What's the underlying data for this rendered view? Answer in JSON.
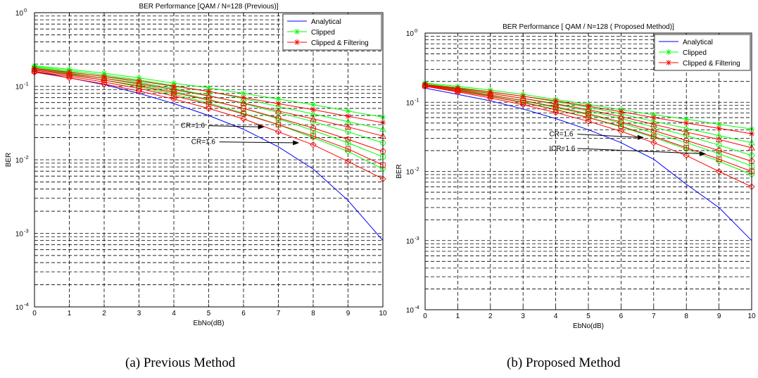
{
  "chart_data": [
    {
      "type": "line",
      "y_scale": "log",
      "title": "BER Performance [QAM / N=128 (Previous)]",
      "xlabel": "EbNo(dB)",
      "ylabel": "BER",
      "xlim": [
        0,
        10
      ],
      "ylim": [
        0.0001,
        1
      ],
      "x_ticks": [
        "0",
        "1",
        "2",
        "3",
        "4",
        "5",
        "6",
        "7",
        "8",
        "9",
        "10"
      ],
      "y_ticks": [
        {
          "base": "10",
          "exp": "0",
          "value": 1
        },
        {
          "base": "10",
          "exp": "-1",
          "value": 0.1
        },
        {
          "base": "10",
          "exp": "-2",
          "value": 0.01
        },
        {
          "base": "10",
          "exp": "-3",
          "value": 0.001
        },
        {
          "base": "10",
          "exp": "-4",
          "value": 0.0001
        }
      ],
      "grid": true,
      "legend_position": "top-right",
      "caption": "(a) Previous Method",
      "x": [
        0,
        1,
        2,
        3,
        4,
        5,
        6,
        7,
        8,
        9,
        10
      ],
      "series": [
        {
          "name": "Analytical",
          "color": "#0000ff",
          "marker": "none",
          "values": [
            0.16,
            0.13,
            0.105,
            0.08,
            0.058,
            0.04,
            0.026,
            0.015,
            0.0075,
            0.0028,
            0.0008
          ]
        },
        {
          "name": "Clipped",
          "color": "#00ff00",
          "marker": "star",
          "values": [
            0.19,
            0.17,
            0.15,
            0.13,
            0.11,
            0.095,
            0.08,
            0.067,
            0.056,
            0.046,
            0.038
          ]
        },
        {
          "color": "#00ff00",
          "marker": "triangle",
          "values": [
            0.185,
            0.163,
            0.142,
            0.122,
            0.102,
            0.085,
            0.068,
            0.053,
            0.042,
            0.033,
            0.026
          ]
        },
        {
          "color": "#00ff00",
          "marker": "circle",
          "values": [
            0.18,
            0.157,
            0.135,
            0.113,
            0.093,
            0.075,
            0.058,
            0.044,
            0.033,
            0.024,
            0.017
          ]
        },
        {
          "color": "#00ff00",
          "marker": "square",
          "values": [
            0.175,
            0.151,
            0.128,
            0.106,
            0.085,
            0.066,
            0.05,
            0.036,
            0.025,
            0.017,
            0.011
          ]
        },
        {
          "color": "#00ff00",
          "marker": "diamond",
          "values": [
            0.17,
            0.145,
            0.121,
            0.098,
            0.078,
            0.059,
            0.043,
            0.03,
            0.02,
            0.013,
            0.0075
          ]
        },
        {
          "name": "Clipped & Filtering",
          "color": "#ff0000",
          "marker": "star",
          "values": [
            0.175,
            0.155,
            0.136,
            0.118,
            0.1,
            0.085,
            0.07,
            0.058,
            0.048,
            0.039,
            0.032
          ]
        },
        {
          "color": "#ff0000",
          "marker": "triangle",
          "values": [
            0.17,
            0.148,
            0.128,
            0.109,
            0.09,
            0.074,
            0.059,
            0.046,
            0.036,
            0.028,
            0.021
          ]
        },
        {
          "color": "#ff0000",
          "marker": "circle",
          "values": [
            0.165,
            0.142,
            0.121,
            0.101,
            0.082,
            0.065,
            0.05,
            0.037,
            0.027,
            0.019,
            0.013
          ]
        },
        {
          "color": "#ff0000",
          "marker": "square",
          "values": [
            0.16,
            0.136,
            0.114,
            0.093,
            0.074,
            0.057,
            0.042,
            0.03,
            0.021,
            0.014,
            0.0085
          ]
        },
        {
          "color": "#ff0000",
          "marker": "diamond",
          "values": [
            0.155,
            0.13,
            0.107,
            0.086,
            0.067,
            0.05,
            0.036,
            0.024,
            0.016,
            0.0095,
            0.0055
          ]
        }
      ],
      "annotations": [
        {
          "text": "CR=1.6",
          "text_at": [
            4.2,
            0.029
          ],
          "arrow_to": [
            6.6,
            0.028
          ]
        },
        {
          "text": "CR=1.6",
          "text_at": [
            4.5,
            0.0175
          ],
          "arrow_to": [
            7.6,
            0.017
          ]
        }
      ]
    },
    {
      "type": "line",
      "y_scale": "log",
      "title": "BER Performance [ QAM / N=128 ( Proposed Method)]",
      "xlabel": "EbNo(dB)",
      "ylabel": "BER",
      "xlim": [
        0,
        10
      ],
      "ylim": [
        0.0001,
        1
      ],
      "x_ticks": [
        "0",
        "1",
        "2",
        "3",
        "4",
        "5",
        "6",
        "7",
        "8",
        "9",
        "10"
      ],
      "y_ticks": [
        {
          "base": "10",
          "exp": "0",
          "value": 1
        },
        {
          "base": "10",
          "exp": "-1",
          "value": 0.1
        },
        {
          "base": "10",
          "exp": "-2",
          "value": 0.01
        },
        {
          "base": "10",
          "exp": "-3",
          "value": 0.001
        },
        {
          "base": "10",
          "exp": "-4",
          "value": 0.0001
        }
      ],
      "grid": true,
      "legend_position": "top-right",
      "caption": "(b) Proposed Method",
      "x": [
        0,
        1,
        2,
        3,
        4,
        5,
        6,
        7,
        8,
        9,
        10
      ],
      "series": [
        {
          "name": "Analytical",
          "color": "#0000ff",
          "marker": "none",
          "values": [
            0.16,
            0.13,
            0.105,
            0.08,
            0.058,
            0.04,
            0.026,
            0.015,
            0.0065,
            0.003,
            0.001
          ]
        },
        {
          "name": "Clipped",
          "color": "#00ff00",
          "marker": "star",
          "values": [
            0.19,
            0.17,
            0.15,
            0.13,
            0.11,
            0.093,
            0.078,
            0.066,
            0.057,
            0.048,
            0.041
          ]
        },
        {
          "color": "#00ff00",
          "marker": "triangle",
          "values": [
            0.185,
            0.163,
            0.142,
            0.122,
            0.102,
            0.085,
            0.068,
            0.053,
            0.042,
            0.033,
            0.026
          ]
        },
        {
          "color": "#00ff00",
          "marker": "circle",
          "values": [
            0.18,
            0.157,
            0.135,
            0.113,
            0.093,
            0.075,
            0.058,
            0.044,
            0.033,
            0.024,
            0.017
          ]
        },
        {
          "color": "#00ff00",
          "marker": "square",
          "values": [
            0.178,
            0.152,
            0.128,
            0.105,
            0.084,
            0.066,
            0.05,
            0.036,
            0.026,
            0.018,
            0.012
          ]
        },
        {
          "color": "#00ff00",
          "marker": "diamond",
          "values": [
            0.175,
            0.148,
            0.123,
            0.1,
            0.079,
            0.06,
            0.044,
            0.031,
            0.021,
            0.014,
            0.009
          ]
        },
        {
          "name": "Clipped & Filtering",
          "color": "#ff0000",
          "marker": "star",
          "values": [
            0.18,
            0.16,
            0.141,
            0.122,
            0.105,
            0.088,
            0.073,
            0.06,
            0.05,
            0.042,
            0.035
          ]
        },
        {
          "color": "#ff0000",
          "marker": "triangle",
          "values": [
            0.178,
            0.155,
            0.134,
            0.114,
            0.095,
            0.078,
            0.062,
            0.048,
            0.037,
            0.029,
            0.022
          ]
        },
        {
          "color": "#ff0000",
          "marker": "circle",
          "values": [
            0.175,
            0.15,
            0.127,
            0.106,
            0.086,
            0.068,
            0.052,
            0.039,
            0.028,
            0.02,
            0.014
          ]
        },
        {
          "color": "#ff0000",
          "marker": "square",
          "values": [
            0.172,
            0.145,
            0.121,
            0.099,
            0.078,
            0.06,
            0.045,
            0.032,
            0.022,
            0.015,
            0.01
          ]
        },
        {
          "color": "#ff0000",
          "marker": "diamond",
          "values": [
            0.17,
            0.141,
            0.115,
            0.092,
            0.071,
            0.053,
            0.038,
            0.026,
            0.017,
            0.01,
            0.006
          ]
        }
      ],
      "annotations": [
        {
          "text": "CR=1.6",
          "text_at": [
            3.8,
            0.0345
          ],
          "arrow_to": [
            6.7,
            0.031
          ]
        },
        {
          "text": "ICR=1.6",
          "text_at": [
            3.8,
            0.0215
          ],
          "arrow_to": [
            8.6,
            0.018
          ]
        }
      ]
    }
  ]
}
